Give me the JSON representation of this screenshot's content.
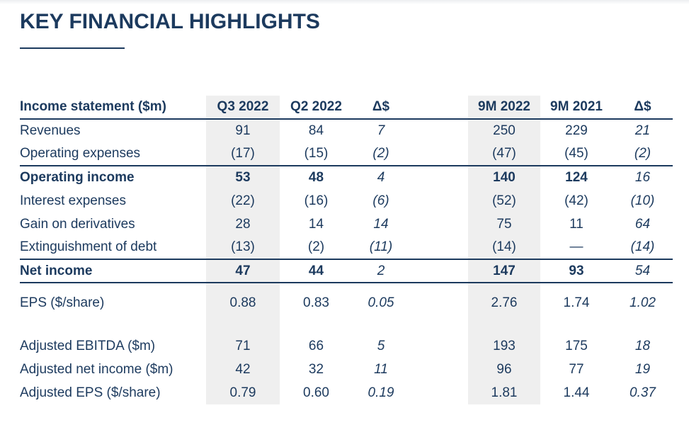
{
  "page": {
    "title": "KEY FINANCIAL HIGHLIGHTS",
    "accent_navy": "#1c3a5e",
    "highlight_gray": "#efefef"
  },
  "table": {
    "label_header": "Income statement ($m)",
    "column_headers": [
      "Q3 2022",
      "Q2 2022",
      "Δ$",
      "9M 2022",
      "9M 2021",
      "Δ$"
    ],
    "highlighted_columns": [
      "Q3 2022",
      "9M 2022"
    ],
    "rows": [
      {
        "key": "revenues",
        "label": "Revenues",
        "cells": [
          "91",
          "84",
          "7",
          "250",
          "229",
          "21"
        ],
        "bold": false,
        "rule_below": false
      },
      {
        "key": "operating-expenses",
        "label": "Operating expenses",
        "cells": [
          "(17)",
          "(15)",
          "(2)",
          "(47)",
          "(45)",
          "(2)"
        ],
        "bold": false,
        "rule_below": true
      },
      {
        "key": "operating-income",
        "label": "Operating income",
        "cells": [
          "53",
          "48",
          "4",
          "140",
          "124",
          "16"
        ],
        "bold": true,
        "rule_below": false
      },
      {
        "key": "interest-expenses",
        "label": "Interest expenses",
        "cells": [
          "(22)",
          "(16)",
          "(6)",
          "(52)",
          "(42)",
          "(10)"
        ],
        "bold": false,
        "rule_below": false
      },
      {
        "key": "gain-on-derivatives",
        "label": "Gain on derivatives",
        "cells": [
          "28",
          "14",
          "14",
          "75",
          "11",
          "64"
        ],
        "bold": false,
        "rule_below": false
      },
      {
        "key": "extinguishment-of-debt",
        "label": "Extinguishment of debt",
        "cells": [
          "(13)",
          "(2)",
          "(11)",
          "(14)",
          "—",
          "(14)"
        ],
        "bold": false,
        "rule_below": true
      },
      {
        "key": "net-income",
        "label": "Net income",
        "cells": [
          "47",
          "44",
          "2",
          "147",
          "93",
          "54"
        ],
        "bold": true,
        "rule_below": true
      },
      {
        "key": "eps",
        "label": "EPS ($/share)",
        "cells": [
          "0.88",
          "0.83",
          "0.05",
          "2.76",
          "1.74",
          "1.02"
        ],
        "bold": false,
        "rule_below": false,
        "tall": true
      },
      {
        "key": "spacer",
        "label": "",
        "cells": [
          "",
          "",
          "",
          "",
          "",
          ""
        ],
        "spacer": true
      },
      {
        "key": "adjusted-ebitda",
        "label": "Adjusted EBITDA ($m)",
        "cells": [
          "71",
          "66",
          "5",
          "193",
          "175",
          "18"
        ],
        "bold": false,
        "rule_below": false
      },
      {
        "key": "adjusted-net-income",
        "label": "Adjusted net income ($m)",
        "cells": [
          "42",
          "32",
          "11",
          "96",
          "77",
          "19"
        ],
        "bold": false,
        "rule_below": false
      },
      {
        "key": "adjusted-eps",
        "label": "Adjusted EPS ($/share)",
        "cells": [
          "0.79",
          "0.60",
          "0.19",
          "1.81",
          "1.44",
          "0.37"
        ],
        "bold": false,
        "rule_below": false
      }
    ]
  }
}
